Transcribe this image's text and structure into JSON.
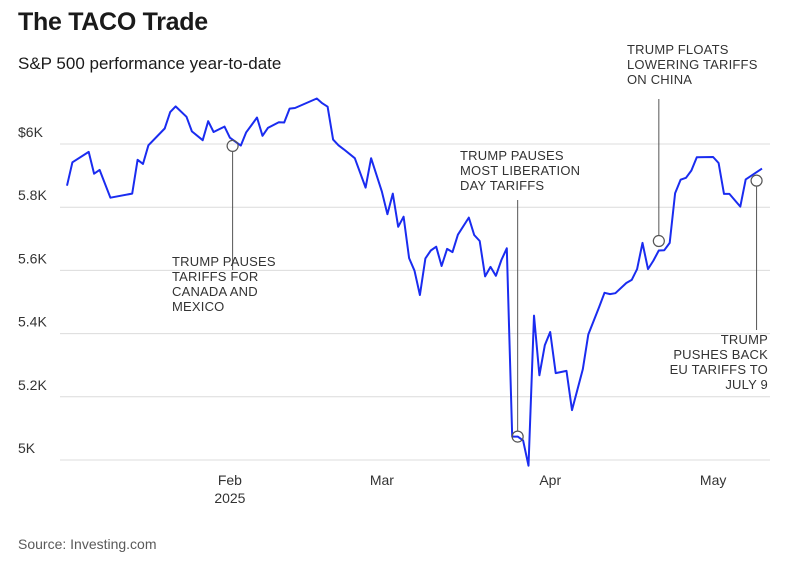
{
  "chart_data": {
    "type": "line",
    "title": "The TACO Trade",
    "subtitle": "S&P 500 performance year-to-date",
    "source": "Source: Investing.com",
    "ylim": [
      4950,
      6800
    ],
    "x_domain": [
      0,
      146
    ],
    "y_ticks": [
      {
        "value": 5000,
        "label": "5K"
      },
      {
        "value": 5200,
        "label": "5.2K"
      },
      {
        "value": 5400,
        "label": "5.4K"
      },
      {
        "value": 5600,
        "label": "5.6K"
      },
      {
        "value": 5800,
        "label": "5.8K"
      },
      {
        "value": 6000,
        "label": "$6K"
      }
    ],
    "x_ticks": [
      {
        "day": 31,
        "label": "Feb",
        "sublabel": "2025"
      },
      {
        "day": 59,
        "label": "Mar"
      },
      {
        "day": 90,
        "label": "Apr"
      },
      {
        "day": 120,
        "label": "May"
      }
    ],
    "series": [
      {
        "name": "S&P 500",
        "color": "#1a2cf0",
        "points": [
          [
            1,
            5868
          ],
          [
            2,
            5942
          ],
          [
            5,
            5975
          ],
          [
            6,
            5906
          ],
          [
            7,
            5918
          ],
          [
            9,
            5830
          ],
          [
            13,
            5843
          ],
          [
            14,
            5950
          ],
          [
            15,
            5937
          ],
          [
            16,
            5996
          ],
          [
            19,
            6049
          ],
          [
            20,
            6101
          ],
          [
            21,
            6119
          ],
          [
            23,
            6086
          ],
          [
            24,
            6040
          ],
          [
            26,
            6012
          ],
          [
            27,
            6072
          ],
          [
            28,
            6038
          ],
          [
            30,
            6055
          ],
          [
            31,
            6020
          ],
          [
            33,
            5995
          ],
          [
            34,
            6037
          ],
          [
            35,
            6060
          ],
          [
            36,
            6084
          ],
          [
            37,
            6026
          ],
          [
            38,
            6051
          ],
          [
            40,
            6069
          ],
          [
            41,
            6068
          ],
          [
            42,
            6112
          ],
          [
            43,
            6114
          ],
          [
            47,
            6144
          ],
          [
            48,
            6129
          ],
          [
            49,
            6118
          ],
          [
            50,
            6014
          ],
          [
            51,
            5996
          ],
          [
            52,
            5983
          ],
          [
            54,
            5955
          ],
          [
            56,
            5862
          ],
          [
            57,
            5955
          ],
          [
            59,
            5849
          ],
          [
            60,
            5778
          ],
          [
            61,
            5843
          ],
          [
            62,
            5738
          ],
          [
            63,
            5770
          ],
          [
            64,
            5639
          ],
          [
            65,
            5599
          ],
          [
            66,
            5522
          ],
          [
            67,
            5638
          ],
          [
            68,
            5663
          ],
          [
            69,
            5675
          ],
          [
            70,
            5614
          ],
          [
            71,
            5668
          ],
          [
            72,
            5658
          ],
          [
            73,
            5713
          ],
          [
            75,
            5767
          ],
          [
            76,
            5712
          ],
          [
            77,
            5693
          ],
          [
            78,
            5581
          ],
          [
            79,
            5611
          ],
          [
            80,
            5583
          ],
          [
            81,
            5633
          ],
          [
            82,
            5670
          ],
          [
            83,
            5074
          ],
          [
            84,
            5074
          ],
          [
            85,
            5062
          ],
          [
            86,
            4982
          ],
          [
            87,
            5457
          ],
          [
            88,
            5268
          ],
          [
            89,
            5363
          ],
          [
            90,
            5405
          ],
          [
            91,
            5275
          ],
          [
            93,
            5282
          ],
          [
            94,
            5158
          ],
          [
            96,
            5287
          ],
          [
            97,
            5397
          ],
          [
            99,
            5484
          ],
          [
            100,
            5529
          ],
          [
            101,
            5525
          ],
          [
            102,
            5528
          ],
          [
            104,
            5560
          ],
          [
            105,
            5570
          ],
          [
            106,
            5604
          ],
          [
            107,
            5687
          ],
          [
            108,
            5604
          ],
          [
            109,
            5631
          ],
          [
            110,
            5663
          ],
          [
            111,
            5664
          ],
          [
            112,
            5687
          ],
          [
            113,
            5844
          ],
          [
            114,
            5887
          ],
          [
            115,
            5893
          ],
          [
            116,
            5916
          ],
          [
            117,
            5958
          ],
          [
            120,
            5959
          ],
          [
            121,
            5940
          ],
          [
            122,
            5842
          ],
          [
            123,
            5842
          ],
          [
            125,
            5802
          ],
          [
            126,
            5888
          ],
          [
            129,
            5922
          ]
        ]
      }
    ],
    "annotations": [
      {
        "day": 31.5,
        "value": 5994,
        "lines": [
          "TRUMP PAUSES",
          "TARIFFS FOR",
          "CANADA AND",
          "MEXICO"
        ],
        "align": "start"
      },
      {
        "day": 84,
        "value": 5074,
        "lines": [
          "TRUMP PAUSES",
          "MOST LIBERATION",
          "DAY TARIFFS"
        ],
        "align": "start"
      },
      {
        "day": 110,
        "value": 5693,
        "lines": [
          "TRUMP FLOATS",
          "LOWERING TARIFFS",
          "ON CHINA"
        ],
        "align": "start"
      },
      {
        "day": 128,
        "value": 5884,
        "lines": [
          "TRUMP",
          "PUSHES BACK",
          "EU TARIFFS TO",
          "JULY 9"
        ],
        "align": "end"
      }
    ]
  }
}
